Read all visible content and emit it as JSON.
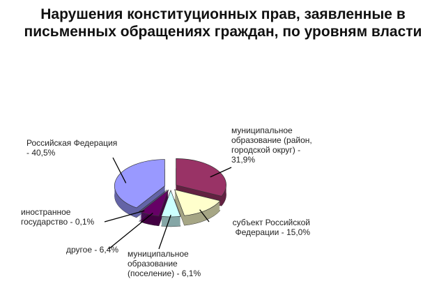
{
  "chart_data": {
    "type": "pie",
    "title": "Нарушения конституционных прав, заявленные в письменных обращениях граждан, по уровням власти",
    "categories": [
      "муниципальное образование (район, городской округ) - 31,9%",
      "субъект Российской Федерации - 15,0%",
      "муниципальное образование (поселение) - 6,1%",
      "другое - 6,4%",
      "иностранное государство - 0,1%",
      "Российская Федерация - 40,5%"
    ],
    "values": [
      31.9,
      15.0,
      6.1,
      6.4,
      0.1,
      40.5
    ],
    "colors": [
      "#993366",
      "#ffffcc",
      "#ccffff",
      "#660066",
      "#8080ff",
      "#9999ff"
    ]
  }
}
